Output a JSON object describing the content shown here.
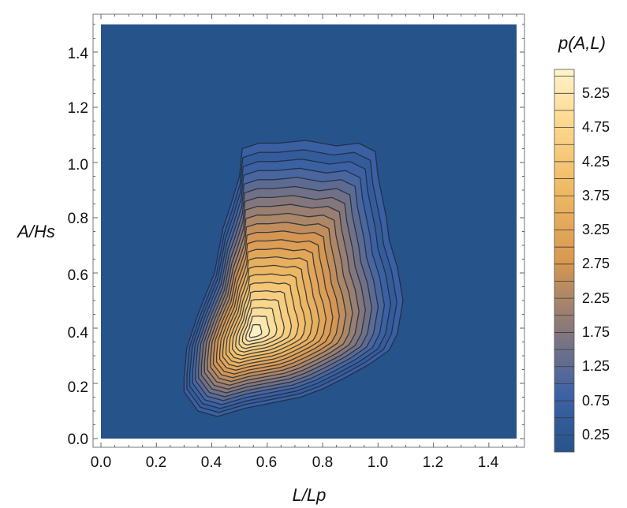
{
  "chart_data": {
    "type": "contour",
    "title": "",
    "xlabel": "L/Lp",
    "ylabel": "A/Hs",
    "xlim": [
      0.0,
      1.5
    ],
    "ylim": [
      0.0,
      1.5
    ],
    "x_ticks": [
      "0.0",
      "0.2",
      "0.4",
      "0.6",
      "0.8",
      "1.0",
      "1.2",
      "1.4"
    ],
    "y_ticks": [
      "0.0",
      "0.2",
      "0.4",
      "0.6",
      "0.8",
      "1.0",
      "1.2",
      "1.4"
    ],
    "legend": {
      "title": "p(A,L)",
      "position": "right",
      "range": [
        0.0,
        5.6
      ],
      "tick_labels": [
        "0.25",
        "0.75",
        "1.25",
        "1.75",
        "2.25",
        "2.75",
        "3.25",
        "3.75",
        "4.25",
        "4.75",
        "5.25"
      ]
    },
    "contour_step": 0.25,
    "peak": {
      "x": 0.55,
      "y": 0.38,
      "value": 5.5
    },
    "outer_contour": [
      [
        0.3,
        0.22
      ],
      [
        0.3,
        0.17
      ],
      [
        0.35,
        0.1
      ],
      [
        0.42,
        0.08
      ],
      [
        0.52,
        0.11
      ],
      [
        0.62,
        0.13
      ],
      [
        0.72,
        0.15
      ],
      [
        0.8,
        0.18
      ],
      [
        0.88,
        0.22
      ],
      [
        0.97,
        0.27
      ],
      [
        1.04,
        0.32
      ],
      [
        1.07,
        0.38
      ],
      [
        1.09,
        0.5
      ],
      [
        1.07,
        0.62
      ],
      [
        1.04,
        0.72
      ],
      [
        1.03,
        0.8
      ],
      [
        1.0,
        0.95
      ],
      [
        0.99,
        1.04
      ],
      [
        0.93,
        1.07
      ],
      [
        0.85,
        1.06
      ],
      [
        0.74,
        1.08
      ],
      [
        0.64,
        1.07
      ],
      [
        0.57,
        1.07
      ],
      [
        0.51,
        1.05
      ],
      [
        0.5,
        0.95
      ],
      [
        0.47,
        0.85
      ],
      [
        0.44,
        0.76
      ],
      [
        0.41,
        0.6
      ],
      [
        0.35,
        0.45
      ],
      [
        0.31,
        0.33
      ]
    ],
    "colors": {
      "background": "#26548a",
      "low": "#26548a",
      "mid": "#87787a",
      "orange": "#e4a04e",
      "high": "#fff3c9"
    }
  }
}
